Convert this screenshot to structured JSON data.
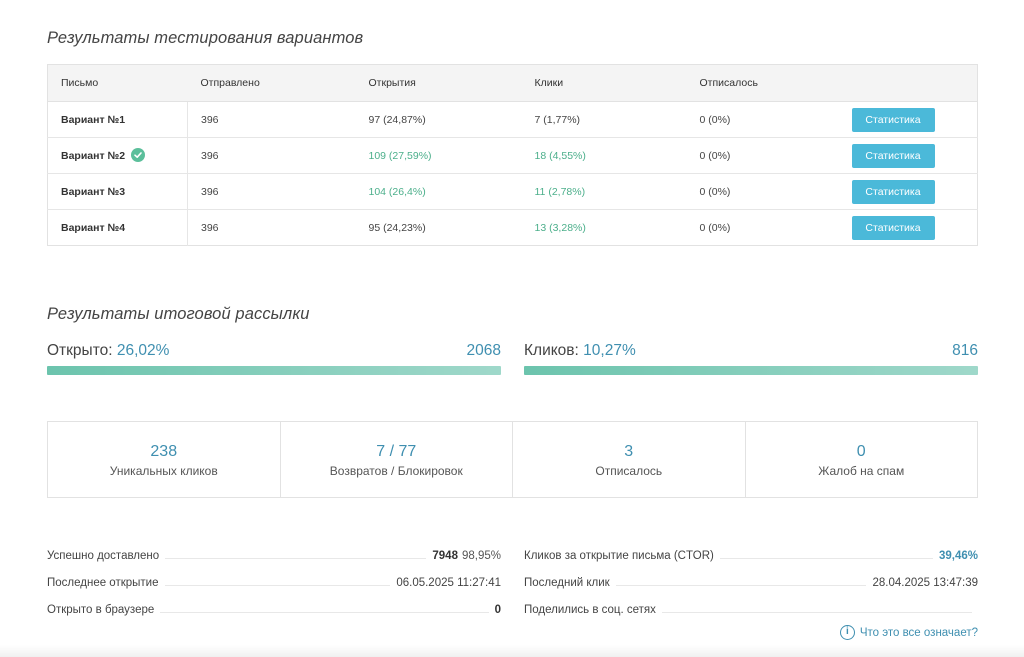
{
  "variants_section": {
    "title": "Результаты тестирования вариантов",
    "headers": [
      "Письмо",
      "Отправлено",
      "Открытия",
      "Клики",
      "Отписалось"
    ],
    "button_label": "Статистика",
    "rows": [
      {
        "name": "Вариант №1",
        "sent": "396",
        "opens": "97 (24,87%)",
        "clicks": "7 (1,77%)",
        "unsub": "0 (0%)",
        "winner": false,
        "opens_hl": false,
        "clicks_hl": false
      },
      {
        "name": "Вариант №2",
        "sent": "396",
        "opens": "109 (27,59%)",
        "clicks": "18 (4,55%)",
        "unsub": "0 (0%)",
        "winner": true,
        "opens_hl": true,
        "clicks_hl": true
      },
      {
        "name": "Вариант №3",
        "sent": "396",
        "opens": "104 (26,4%)",
        "clicks": "11 (2,78%)",
        "unsub": "0 (0%)",
        "winner": false,
        "opens_hl": true,
        "clicks_hl": true
      },
      {
        "name": "Вариант №4",
        "sent": "396",
        "opens": "95 (24,23%)",
        "clicks": "13 (3,28%)",
        "unsub": "0 (0%)",
        "winner": false,
        "opens_hl": false,
        "clicks_hl": true
      }
    ]
  },
  "final_section": {
    "title": "Результаты итоговой рассылки",
    "opened": {
      "label": "Открыто:",
      "percent": "26,02%",
      "count": "2068",
      "fill": 1.0
    },
    "clicks": {
      "label": "Кликов:",
      "percent": "10,27%",
      "count": "816",
      "fill": 1.0
    },
    "stats": [
      {
        "value": "238",
        "label": "Уникальных кликов"
      },
      {
        "value": "7 / 77",
        "label": "Возвратов / Блокировок"
      },
      {
        "value": "3",
        "label": "Отписалось"
      },
      {
        "value": "0",
        "label": "Жалоб на спам"
      }
    ],
    "details_left": [
      {
        "label": "Успешно доставлено",
        "value": "7948",
        "sub": "98,95%"
      },
      {
        "label": "Последнее открытие",
        "value": "06.05.2025 11:27:41"
      },
      {
        "label": "Открыто в браузере",
        "value": "0"
      }
    ],
    "details_right": [
      {
        "label": "Кликов за открытие письма (CTOR)",
        "value": "39,46%"
      },
      {
        "label": "Последний клик",
        "value": "28.04.2025 13:47:39"
      },
      {
        "label": "Поделились в соц. сетях",
        "value": ""
      }
    ],
    "help_link": "Что это все означает?"
  },
  "colors": {
    "accent": "#3f8fb0",
    "button": "#4bb9d9",
    "highlight": "#4caf8b",
    "bar": "#6cc4ad"
  }
}
